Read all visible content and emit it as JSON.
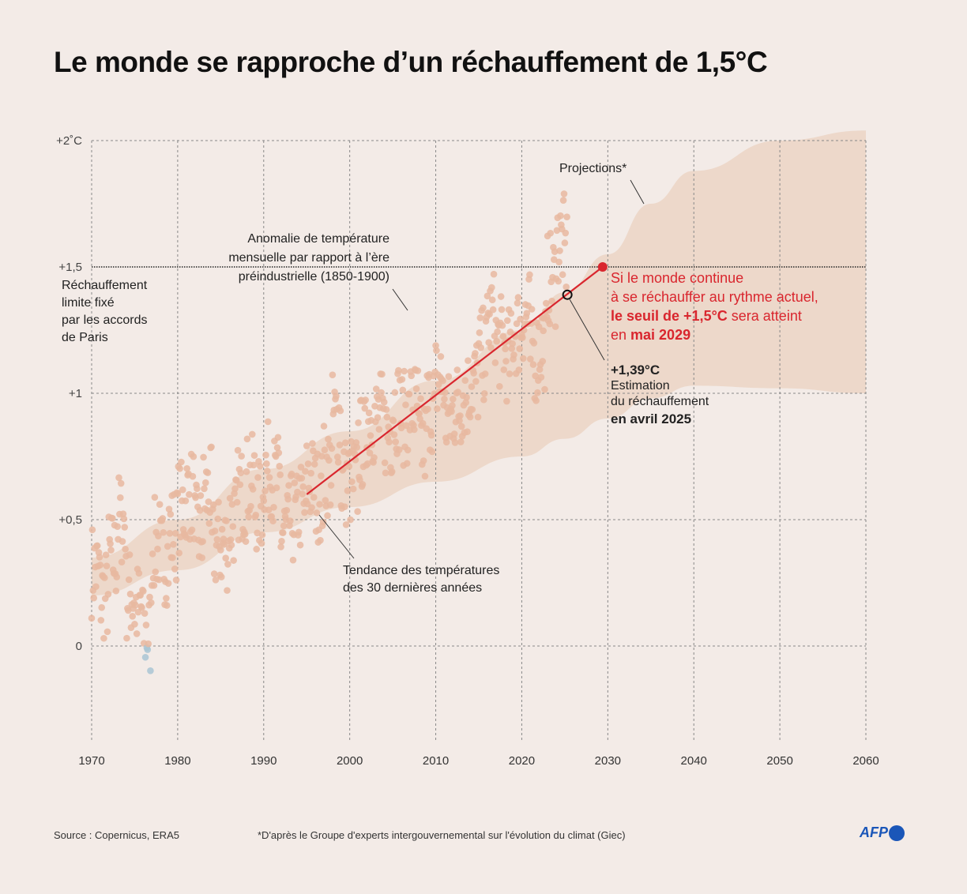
{
  "title": "Le monde se rapproche d’un réchauffement de 1,5°C",
  "chart_data": {
    "type": "scatter",
    "xlim": [
      1970,
      2060
    ],
    "ylim": [
      -0.375,
      2
    ],
    "x_ticks": [
      "1970",
      "1980",
      "1990",
      "2000",
      "2010",
      "2020",
      "2030",
      "2040",
      "2050",
      "2060"
    ],
    "x_tick_values": [
      1970,
      1980,
      1990,
      2000,
      2010,
      2020,
      2030,
      2040,
      2050,
      2060
    ],
    "y_ticks": [
      "+2˚C",
      "+1,5",
      "+1",
      "+0,5",
      "0"
    ],
    "y_tick_values": [
      2,
      1.5,
      1,
      0.5,
      0
    ],
    "grid": true,
    "colors": {
      "points": "#e8b9a0",
      "negative_points": "#a9c6d3",
      "projection": "#ecd6c6",
      "trend": "#d9262e",
      "grid": "#888888"
    },
    "annual_anomaly": {
      "years": [
        1970,
        1971,
        1972,
        1973,
        1974,
        1975,
        1976,
        1977,
        1978,
        1979,
        1980,
        1981,
        1982,
        1983,
        1984,
        1985,
        1986,
        1987,
        1988,
        1989,
        1990,
        1991,
        1992,
        1993,
        1994,
        1995,
        1996,
        1997,
        1998,
        1999,
        2000,
        2001,
        2002,
        2003,
        2004,
        2005,
        2006,
        2007,
        2008,
        2009,
        2010,
        2011,
        2012,
        2013,
        2014,
        2015,
        2016,
        2017,
        2018,
        2019,
        2020,
        2021,
        2022,
        2023,
        2024,
        2025
      ],
      "values": [
        0.3,
        0.2,
        0.35,
        0.5,
        0.2,
        0.15,
        0.05,
        0.4,
        0.35,
        0.45,
        0.55,
        0.6,
        0.45,
        0.6,
        0.4,
        0.4,
        0.5,
        0.6,
        0.65,
        0.55,
        0.7,
        0.65,
        0.45,
        0.5,
        0.55,
        0.65,
        0.6,
        0.7,
        0.9,
        0.65,
        0.65,
        0.8,
        0.9,
        0.9,
        0.85,
        0.95,
        0.9,
        0.95,
        0.8,
        0.95,
        1.05,
        0.9,
        0.95,
        1.0,
        1.05,
        1.15,
        1.3,
        1.2,
        1.15,
        1.25,
        1.3,
        1.15,
        1.2,
        1.45,
        1.6,
        1.55
      ]
    },
    "projection_band": {
      "years": [
        1970,
        1980,
        1990,
        2000,
        2010,
        2020,
        2025,
        2030,
        2035,
        2040,
        2050,
        2060
      ],
      "upper": [
        0.35,
        0.5,
        0.7,
        0.85,
        1.05,
        1.25,
        1.4,
        1.55,
        1.75,
        1.88,
        2.0,
        2.04
      ],
      "lower": [
        0.2,
        0.3,
        0.45,
        0.55,
        0.65,
        0.75,
        0.82,
        0.9,
        0.98,
        1.03,
        1.02,
        1.0
      ]
    },
    "trend": {
      "start": [
        1995,
        0.6
      ],
      "end": [
        2029.4,
        1.5
      ]
    },
    "estimate_point": [
      2025.3,
      1.39
    ],
    "threshold": 1.5
  },
  "annotations": {
    "paris": [
      "Réchauffement",
      "limite fixé",
      "par les accords",
      "de Paris"
    ],
    "anomaly": [
      "Anomalie de température",
      "mensuelle par rapport à l’ère",
      "préindustrielle (1850-1900)"
    ],
    "projections": "Projections*",
    "threshold_l1": "Si le monde continue",
    "threshold_l2": "à se réchauffer au rythme actuel,",
    "threshold_l3_bold": "le seuil de +1,5°C",
    "threshold_l3_rest": " sera atteint",
    "threshold_l4_pre": "en ",
    "threshold_l4_bold": "mai 2029",
    "estimate_value": "+1,39°C",
    "estimate_l1": "Estimation",
    "estimate_l2": "du réchauffement",
    "estimate_l3": "en avril 2025",
    "trend": [
      "Tendance des températures",
      "des 30 dernières années"
    ]
  },
  "footer": {
    "source": "Source : Copernicus, ERA5",
    "note": "*D'après le Groupe d'experts intergouvernemental sur l'évolution du climat (Giec)",
    "logo": "AFP"
  }
}
